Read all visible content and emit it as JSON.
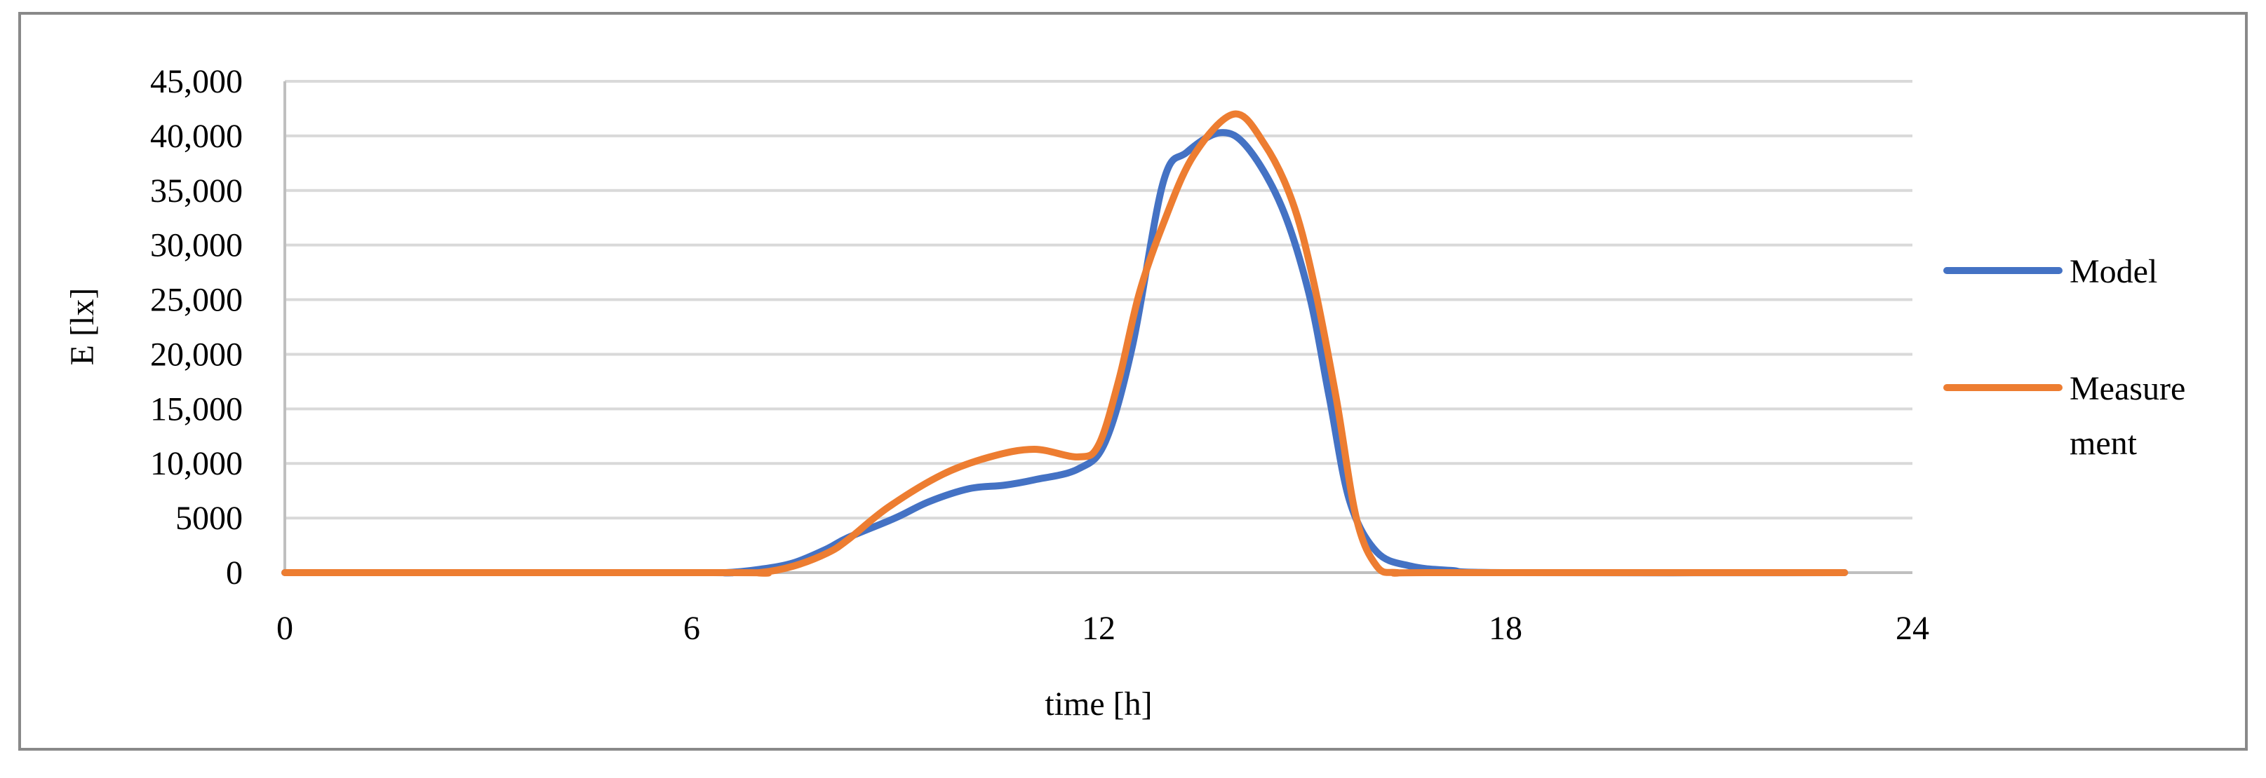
{
  "chart_data": {
    "type": "line",
    "title": "",
    "xlabel": "time [h]",
    "ylabel": "E [lx]",
    "xlim": [
      0,
      24
    ],
    "ylim": [
      0,
      45000
    ],
    "x_ticks": [
      0,
      6,
      12,
      18,
      24
    ],
    "x_tick_labels": [
      "0",
      "6",
      "12",
      "18",
      "24"
    ],
    "y_ticks": [
      0,
      5000,
      10000,
      15000,
      20000,
      25000,
      30000,
      35000,
      40000,
      45000
    ],
    "y_tick_labels": [
      "0",
      "5000",
      "10,000",
      "15,000",
      "20,000",
      "25,000",
      "30,000",
      "35,000",
      "40,000",
      "45,000"
    ],
    "grid": "horizontal",
    "legend_position": "right",
    "series": [
      {
        "name": "Model",
        "legend_lines": [
          "Model"
        ],
        "color": "#4472C4",
        "x": [
          0,
          6,
          6.5,
          7,
          7.5,
          8,
          8.3,
          9,
          9.5,
          10.1,
          10.6,
          11.05,
          11.7,
          12.1,
          12.5,
          12.95,
          13.3,
          13.8,
          14.2,
          14.7,
          15.1,
          15.4,
          15.7,
          16.1,
          16.6,
          17.2,
          18,
          23
        ],
        "y": [
          0,
          0,
          0,
          300,
          900,
          2200,
          3200,
          5000,
          6500,
          7700,
          8000,
          8500,
          9500,
          12000,
          20800,
          35700,
          38500,
          40300,
          38900,
          33500,
          25600,
          16100,
          6600,
          1900,
          600,
          200,
          0,
          0
        ]
      },
      {
        "name": "Measurement",
        "legend_lines": [
          "Measure",
          "ment"
        ],
        "color": "#ED7D31",
        "x": [
          0,
          6.5,
          7,
          7.5,
          8,
          8.3,
          8.9,
          9.7,
          10.4,
          11.05,
          11.7,
          12.0,
          12.3,
          12.6,
          12.95,
          13.4,
          14.0,
          14.45,
          14.85,
          15.15,
          15.5,
          15.8,
          16.1,
          16.4,
          17,
          23
        ],
        "y": [
          0,
          0,
          0,
          600,
          1800,
          3000,
          6000,
          9000,
          10600,
          11300,
          10600,
          11700,
          17700,
          25600,
          31900,
          38200,
          42000,
          39200,
          34100,
          27200,
          16100,
          5000,
          600,
          0,
          0,
          0
        ]
      }
    ]
  }
}
